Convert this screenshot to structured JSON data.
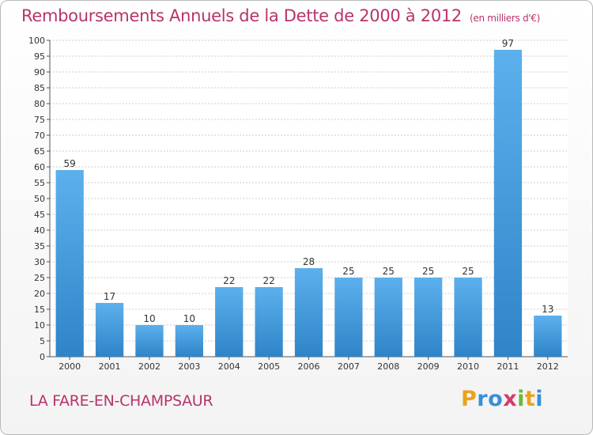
{
  "chart_data": {
    "type": "bar",
    "title": "Remboursements Annuels de la Dette de 2000 à 2012",
    "unit_note": "(en milliers d'€)",
    "categories": [
      "2000",
      "2001",
      "2002",
      "2003",
      "2004",
      "2005",
      "2006",
      "2007",
      "2008",
      "2009",
      "2010",
      "2011",
      "2012"
    ],
    "values": [
      59,
      17,
      10,
      10,
      22,
      22,
      28,
      25,
      25,
      25,
      25,
      97,
      13
    ],
    "ylim": [
      0,
      100
    ],
    "ytick_step": 5,
    "grid": true,
    "bar_color": "#4a9fe0",
    "label": "LA FARE-EN-CHAMPSAUR"
  },
  "logo": {
    "letters": [
      "P",
      "r",
      "o",
      "x",
      "i",
      "t",
      "i"
    ],
    "colors": [
      "#e8a31e",
      "#3a8fd6",
      "#3a8fd6",
      "#d63a6a",
      "#6ab83a",
      "#e8a31e",
      "#3a8fd6"
    ]
  },
  "colors": {
    "title": "#b8336a"
  }
}
